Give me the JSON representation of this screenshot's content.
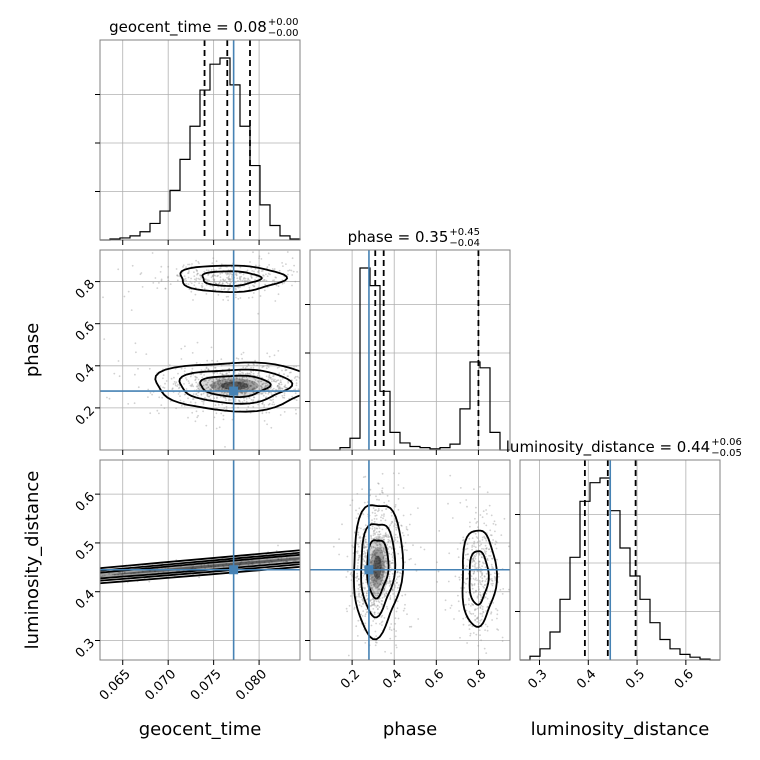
{
  "chart_data": {
    "type": "corner",
    "parameters": [
      "geocent_time",
      "phase",
      "luminosity_distance"
    ],
    "truth": {
      "geocent_time": 0.0772,
      "phase": 0.28,
      "luminosity_distance": 0.445
    },
    "titles": [
      {
        "name": "geocent_time",
        "median": "0.08",
        "plus": "+0.00",
        "minus": "−0.00"
      },
      {
        "name": "phase",
        "median": "0.35",
        "plus": "+0.45",
        "minus": "−0.04"
      },
      {
        "name": "luminosity_distance",
        "median": "0.44",
        "plus": "+0.06",
        "minus": "−0.05"
      }
    ],
    "axes": {
      "geocent_time": {
        "lim": [
          0.0625,
          0.0845
        ],
        "ticks": [
          0.065,
          0.07,
          0.075,
          0.08
        ],
        "ticklabels": [
          "0.065",
          "0.070",
          "0.075",
          "0.080"
        ]
      },
      "phase": {
        "lim": [
          0.0,
          0.95
        ],
        "ticks": [
          0.2,
          0.4,
          0.6,
          0.8
        ],
        "ticklabels": [
          "0.2",
          "0.4",
          "0.6",
          "0.8"
        ]
      },
      "luminosity_distance": {
        "lim": [
          0.26,
          0.67
        ],
        "ticks": [
          0.3,
          0.4,
          0.5,
          0.6
        ],
        "ticklabels": [
          "0.3",
          "0.4",
          "0.5",
          "0.6"
        ]
      }
    },
    "histograms": {
      "geocent_time": {
        "edges": [
          0.0625,
          0.0636,
          0.0647,
          0.0658,
          0.0669,
          0.068,
          0.0691,
          0.0702,
          0.0713,
          0.0724,
          0.0735,
          0.0746,
          0.0757,
          0.0768,
          0.0779,
          0.079,
          0.0801,
          0.0812,
          0.0823,
          0.0834,
          0.0845
        ],
        "counts": [
          0,
          1,
          2,
          4,
          8,
          16,
          28,
          48,
          78,
          110,
          145,
          170,
          176,
          150,
          110,
          72,
          34,
          14,
          4,
          1
        ],
        "quantiles": [
          0.074,
          0.0765,
          0.079
        ]
      },
      "phase": {
        "edges": [
          0.0,
          0.0475,
          0.095,
          0.1425,
          0.19,
          0.2375,
          0.285,
          0.3325,
          0.38,
          0.4275,
          0.475,
          0.5225,
          0.57,
          0.6175,
          0.665,
          0.7125,
          0.76,
          0.8075,
          0.855,
          0.9025,
          0.95
        ],
        "counts": [
          0,
          0,
          0,
          2,
          10,
          155,
          140,
          50,
          15,
          6,
          3,
          2,
          1,
          2,
          5,
          35,
          75,
          70,
          15,
          0
        ],
        "quantiles": [
          0.31,
          0.35,
          0.8
        ]
      },
      "luminosity_distance": {
        "edges": [
          0.26,
          0.2805,
          0.301,
          0.3215,
          0.342,
          0.3625,
          0.383,
          0.4035,
          0.424,
          0.4445,
          0.465,
          0.4855,
          0.506,
          0.5265,
          0.547,
          0.5675,
          0.588,
          0.6085,
          0.629,
          0.6495,
          0.67
        ],
        "counts": [
          0,
          4,
          12,
          30,
          65,
          110,
          170,
          190,
          195,
          160,
          120,
          90,
          65,
          40,
          22,
          12,
          6,
          3,
          1,
          0
        ],
        "quantiles": [
          0.393,
          0.44,
          0.497
        ]
      }
    },
    "contours": {
      "phase_vs_geocent_time": [
        {
          "center": [
            0.0773,
            0.305
          ],
          "sx": 0.0038,
          "sy": 0.05,
          "levels": [
            1.0,
            1.6,
            2.3
          ],
          "dense": true
        },
        {
          "center": [
            0.0768,
            0.815
          ],
          "sx": 0.0032,
          "sy": 0.035,
          "levels": [
            1.0,
            1.8
          ],
          "dense": false
        }
      ],
      "luminosity_distance_vs_geocent_time": [
        {
          "center": [
            0.0763,
            0.455
          ],
          "sx": 0.0038,
          "sy": 0.06,
          "rot": -0.55,
          "levels": [
            1.0,
            1.6,
            2.3
          ],
          "dense": true
        }
      ],
      "luminosity_distance_vs_phase": [
        {
          "center": [
            0.32,
            0.45
          ],
          "sx": 0.05,
          "sy": 0.06,
          "rot": -0.25,
          "levels": [
            1.0,
            1.6,
            2.3
          ],
          "dense": true
        },
        {
          "center": [
            0.8,
            0.43
          ],
          "sx": 0.045,
          "sy": 0.055,
          "rot": -0.1,
          "levels": [
            1.0,
            1.8
          ],
          "dense": false
        }
      ]
    },
    "grid": true,
    "colors": {
      "truth": "#4682b4",
      "hist": "#000000",
      "grid": "#b0b0b0",
      "points": "#9a9a9a",
      "fill": "#000000"
    }
  }
}
